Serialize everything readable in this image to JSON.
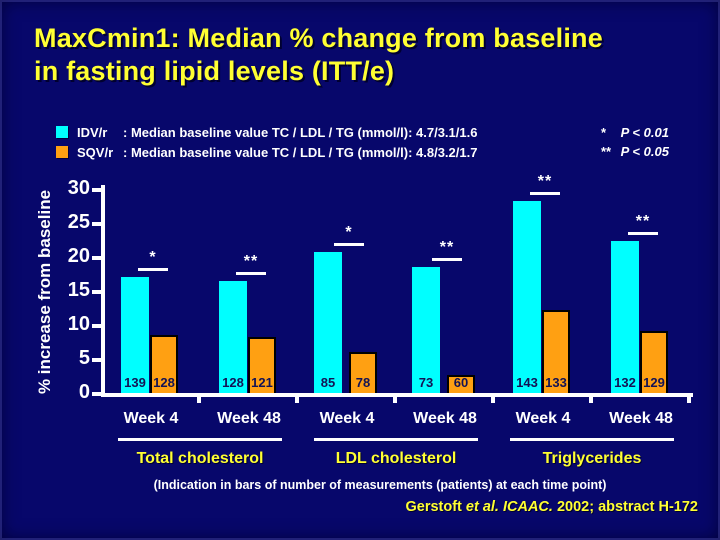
{
  "title": {
    "line1": "MaxCmin1: Median % change from baseline",
    "line2": "in fasting lipid levels (ITT/e)"
  },
  "legend": [
    {
      "series": "IDV/r",
      "color": "#00ffff",
      "text": ": Median baseline value TC / LDL / TG (mmol/l): 4.7/3.1/1.6"
    },
    {
      "series": "SQV/r",
      "color": "#ffa012",
      "text": ": Median baseline value TC / LDL / TG (mmol/l): 4.8/3.2/1.7"
    }
  ],
  "significance_key": [
    {
      "symbol": "*",
      "label": "P < 0.01"
    },
    {
      "symbol": "**",
      "label": "P < 0.05"
    }
  ],
  "chart_data": {
    "type": "bar",
    "ylabel": "% increase from baseline",
    "ylim": [
      0,
      30
    ],
    "yticks": [
      0,
      5,
      10,
      15,
      20,
      25,
      30
    ],
    "grid": false,
    "legend_position": "top-left",
    "series": [
      {
        "name": "IDV/r",
        "color": "#00ffff"
      },
      {
        "name": "SQV/r",
        "color": "#ffa012"
      }
    ],
    "groups": [
      {
        "label": "Total cholesterol",
        "bars": [
          {
            "week": "Week 4",
            "idvr": 17.1,
            "sqvr": 8.5,
            "n_idvr": 139,
            "n_sqvr": 128,
            "sig": "*"
          },
          {
            "week": "Week 48",
            "idvr": 16.5,
            "sqvr": 8.3,
            "n_idvr": 128,
            "n_sqvr": 121,
            "sig": "**"
          }
        ]
      },
      {
        "label": "LDL cholesterol",
        "bars": [
          {
            "week": "Week 4",
            "idvr": 20.8,
            "sqvr": 6.1,
            "n_idvr": 85,
            "n_sqvr": 78,
            "sig": "*"
          },
          {
            "week": "Week 48",
            "idvr": 18.6,
            "sqvr": 2.6,
            "n_idvr": 73,
            "n_sqvr": 60,
            "sig": "**"
          }
        ]
      },
      {
        "label": "Triglycerides",
        "bars": [
          {
            "week": "Week 4",
            "idvr": 28.3,
            "sqvr": 12.2,
            "n_idvr": 143,
            "n_sqvr": 133,
            "sig": "**"
          },
          {
            "week": "Week 48",
            "idvr": 22.4,
            "sqvr": 9.1,
            "n_idvr": 132,
            "n_sqvr": 129,
            "sig": "**"
          }
        ]
      }
    ]
  },
  "footnote": "(Indication in bars of number of measurements (patients) at each time point)",
  "citation": {
    "pre": "Gerstoft ",
    "italic": "et al. ICAAC.",
    "post": " 2002; abstract H-172"
  },
  "colors": {
    "background": "#07076b",
    "title": "#ffff33",
    "idvr_bar": "#00ffff",
    "sqvr_bar": "#ffa012",
    "axis": "#ffffff",
    "group_label": "#ffff33",
    "count_label": "#131355"
  }
}
